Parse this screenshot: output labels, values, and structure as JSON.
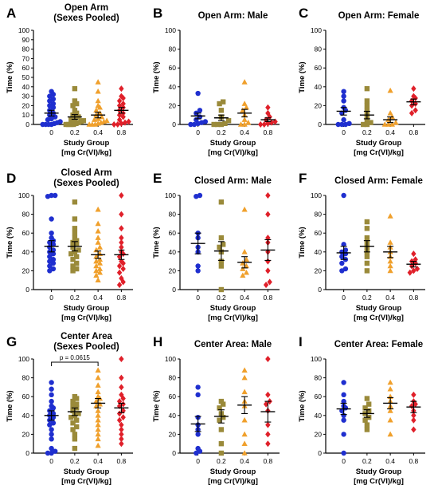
{
  "colors": {
    "0": "#1f2fcf",
    "0.2": "#9a8a3a",
    "0.4": "#f0a02c",
    "0.8": "#e0202a",
    "axis": "#000000"
  },
  "chart_data": [
    {
      "panel": "A",
      "title_lines": [
        "Open Arm",
        "(Sexes Pooled)"
      ],
      "type": "scatter",
      "categories": [
        "0",
        "0.2",
        "0.4",
        "0.8"
      ],
      "ylabel": "Time (%)",
      "xlabel_lines": [
        "Study Group",
        "[mg Cr(VI)/kg]"
      ],
      "ylim": [
        0,
        100
      ],
      "yticks": [
        0,
        10,
        20,
        30,
        40,
        50,
        60,
        70,
        80,
        90,
        100
      ],
      "annotation": null,
      "groups": [
        {
          "category": "0",
          "marker": "circle",
          "mean": 12,
          "sem": 3,
          "points": [
            35,
            32,
            30,
            27,
            25,
            22,
            20,
            18,
            15,
            12,
            10,
            8,
            5,
            3,
            1,
            0,
            0,
            0,
            0,
            2,
            6
          ]
        },
        {
          "category": "0.2",
          "marker": "square",
          "mean": 8,
          "sem": 2.5,
          "points": [
            38,
            25,
            22,
            20,
            15,
            12,
            10,
            8,
            6,
            4,
            2,
            0,
            0,
            0,
            0,
            1,
            3,
            5
          ]
        },
        {
          "category": "0.4",
          "marker": "triangle",
          "mean": 10,
          "sem": 3,
          "points": [
            45,
            35,
            25,
            20,
            18,
            15,
            12,
            10,
            8,
            5,
            3,
            1,
            0,
            0,
            0,
            2,
            4,
            6
          ]
        },
        {
          "category": "0.8",
          "marker": "diamond",
          "mean": 15,
          "sem": 3,
          "points": [
            38,
            30,
            28,
            25,
            22,
            20,
            18,
            15,
            12,
            10,
            8,
            5,
            3,
            1,
            0,
            0,
            2
          ]
        }
      ]
    },
    {
      "panel": "B",
      "title_lines": [
        "Open Arm: Male"
      ],
      "type": "scatter",
      "categories": [
        "0",
        "0.2",
        "0.4",
        "0.8"
      ],
      "ylabel": "Time (%)",
      "xlabel_lines": [
        "Study Group",
        "[mg Cr(VI)/kg]"
      ],
      "ylim": [
        0,
        100
      ],
      "yticks": [
        0,
        20,
        40,
        60,
        80,
        100
      ],
      "annotation": null,
      "groups": [
        {
          "category": "0",
          "marker": "circle",
          "mean": 9,
          "sem": 3,
          "points": [
            33,
            15,
            12,
            8,
            5,
            3,
            1,
            0,
            0,
            2
          ]
        },
        {
          "category": "0.2",
          "marker": "square",
          "mean": 7,
          "sem": 3,
          "points": [
            24,
            22,
            15,
            8,
            4,
            1,
            0,
            0,
            0
          ]
        },
        {
          "category": "0.4",
          "marker": "triangle",
          "mean": 12,
          "sem": 4,
          "points": [
            45,
            22,
            18,
            15,
            10,
            5,
            2,
            0,
            0
          ]
        },
        {
          "category": "0.8",
          "marker": "diamond",
          "mean": 5,
          "sem": 2,
          "points": [
            18,
            12,
            8,
            5,
            3,
            1,
            0,
            0,
            2
          ]
        }
      ]
    },
    {
      "panel": "C",
      "title_lines": [
        "Open Arm: Female"
      ],
      "type": "scatter",
      "categories": [
        "0",
        "0.2",
        "0.4",
        "0.8"
      ],
      "ylabel": "Time (%)",
      "xlabel_lines": [
        "Study Group",
        "[mg Cr(VI)/kg]"
      ],
      "ylim": [
        0,
        100
      ],
      "yticks": [
        0,
        20,
        40,
        60,
        80,
        100
      ],
      "annotation": null,
      "groups": [
        {
          "category": "0",
          "marker": "circle",
          "mean": 14,
          "sem": 4,
          "points": [
            35,
            30,
            25,
            18,
            15,
            12,
            5,
            1,
            0,
            0,
            0
          ]
        },
        {
          "category": "0.2",
          "marker": "square",
          "mean": 10,
          "sem": 4,
          "points": [
            38,
            25,
            20,
            15,
            10,
            5,
            2,
            0,
            0
          ]
        },
        {
          "category": "0.4",
          "marker": "triangle",
          "mean": 5,
          "sem": 3,
          "points": [
            36,
            12,
            8,
            5,
            2,
            0,
            0,
            0
          ]
        },
        {
          "category": "0.8",
          "marker": "diamond",
          "mean": 24,
          "sem": 3,
          "points": [
            38,
            30,
            28,
            25,
            22,
            20,
            15,
            12
          ]
        }
      ]
    },
    {
      "panel": "D",
      "title_lines": [
        "Closed Arm",
        "(Sexes Pooled)"
      ],
      "type": "scatter",
      "categories": [
        "0",
        "0.2",
        "0.4",
        "0.8"
      ],
      "ylabel": "Time (%)",
      "xlabel_lines": [
        "Study Group",
        "[mg Cr(VI)/kg]"
      ],
      "ylim": [
        0,
        100
      ],
      "yticks": [
        0,
        20,
        40,
        60,
        80,
        100
      ],
      "annotation": null,
      "groups": [
        {
          "category": "0",
          "marker": "circle",
          "mean": 46,
          "sem": 6,
          "points": [
            100,
            100,
            99,
            75,
            60,
            55,
            50,
            45,
            42,
            40,
            38,
            35,
            32,
            30,
            28,
            25,
            22,
            20,
            48,
            52
          ]
        },
        {
          "category": "0.2",
          "marker": "square",
          "mean": 46,
          "sem": 5,
          "points": [
            93,
            75,
            65,
            60,
            55,
            52,
            50,
            48,
            45,
            42,
            40,
            38,
            35,
            32,
            28,
            25,
            22,
            20
          ]
        },
        {
          "category": "0.4",
          "marker": "triangle",
          "mean": 37,
          "sem": 4,
          "points": [
            85,
            70,
            62,
            55,
            50,
            45,
            42,
            38,
            35,
            32,
            30,
            28,
            25,
            22,
            20,
            18,
            15,
            10
          ]
        },
        {
          "category": "0.8",
          "marker": "diamond",
          "mean": 37,
          "sem": 5,
          "points": [
            100,
            80,
            65,
            55,
            50,
            45,
            40,
            38,
            35,
            30,
            28,
            25,
            22,
            18,
            12,
            8,
            5
          ]
        }
      ]
    },
    {
      "panel": "E",
      "title_lines": [
        "Closed Arm: Male"
      ],
      "type": "scatter",
      "categories": [
        "0",
        "0.2",
        "0.4",
        "0.8"
      ],
      "ylabel": "Time (%)",
      "xlabel_lines": [
        "Study Group",
        "[mg Cr(VI)/kg]"
      ],
      "ylim": [
        0,
        100
      ],
      "yticks": [
        0,
        20,
        40,
        60,
        80,
        100
      ],
      "annotation": null,
      "groups": [
        {
          "category": "0",
          "marker": "circle",
          "mean": 49,
          "sem": 11,
          "points": [
            100,
            99,
            60,
            55,
            45,
            40,
            25,
            20
          ]
        },
        {
          "category": "0.2",
          "marker": "square",
          "mean": 41,
          "sem": 10,
          "points": [
            93,
            55,
            48,
            45,
            40,
            30,
            25,
            0
          ]
        },
        {
          "category": "0.4",
          "marker": "triangle",
          "mean": 29,
          "sem": 6,
          "points": [
            85,
            40,
            32,
            28,
            25,
            22,
            18,
            15
          ]
        },
        {
          "category": "0.8",
          "marker": "diamond",
          "mean": 42,
          "sem": 11,
          "points": [
            100,
            80,
            55,
            50,
            40,
            30,
            20,
            8,
            5
          ]
        }
      ]
    },
    {
      "panel": "F",
      "title_lines": [
        "Closed Arm: Female"
      ],
      "type": "scatter",
      "categories": [
        "0",
        "0.2",
        "0.4",
        "0.8"
      ],
      "ylabel": "Time (%)",
      "xlabel_lines": [
        "Study Group",
        "[mg Cr(VI)/kg]"
      ],
      "ylim": [
        0,
        100
      ],
      "yticks": [
        0,
        20,
        40,
        60,
        80,
        100
      ],
      "annotation": null,
      "groups": [
        {
          "category": "0",
          "marker": "circle",
          "mean": 39,
          "sem": 7,
          "points": [
            100,
            48,
            42,
            40,
            38,
            35,
            32,
            28,
            22,
            20
          ]
        },
        {
          "category": "0.2",
          "marker": "square",
          "mean": 46,
          "sem": 6,
          "points": [
            72,
            65,
            55,
            50,
            45,
            40,
            35,
            28,
            20
          ]
        },
        {
          "category": "0.4",
          "marker": "triangle",
          "mean": 40,
          "sem": 6,
          "points": [
            78,
            50,
            45,
            40,
            35,
            30,
            25,
            20
          ]
        },
        {
          "category": "0.8",
          "marker": "diamond",
          "mean": 27,
          "sem": 3,
          "points": [
            38,
            32,
            30,
            28,
            25,
            22,
            20,
            18
          ]
        }
      ]
    },
    {
      "panel": "G",
      "title_lines": [
        "Center Area",
        "(Sexes Pooled)"
      ],
      "type": "scatter",
      "categories": [
        "0",
        "0.2",
        "0.4",
        "0.8"
      ],
      "ylabel": "Time (%)",
      "xlabel_lines": [
        "Study Group",
        "[mg Cr(VI)/kg]"
      ],
      "ylim": [
        0,
        100
      ],
      "yticks": [
        0,
        20,
        40,
        60,
        80,
        100
      ],
      "annotation": {
        "text": "p = 0.0615",
        "from": "0",
        "to": "0.4"
      },
      "groups": [
        {
          "category": "0",
          "marker": "circle",
          "mean": 40,
          "sem": 5,
          "points": [
            75,
            68,
            62,
            55,
            50,
            48,
            45,
            42,
            40,
            38,
            35,
            32,
            30,
            25,
            20,
            15,
            5,
            2,
            0,
            0
          ]
        },
        {
          "category": "0.2",
          "marker": "square",
          "mean": 44,
          "sem": 4,
          "points": [
            60,
            58,
            55,
            52,
            50,
            48,
            45,
            42,
            40,
            38,
            35,
            32,
            28,
            25,
            20,
            15,
            5
          ]
        },
        {
          "category": "0.4",
          "marker": "triangle",
          "mean": 53,
          "sem": 5,
          "points": [
            88,
            80,
            72,
            65,
            60,
            58,
            55,
            52,
            50,
            45,
            40,
            35,
            30,
            25,
            20,
            15,
            8
          ]
        },
        {
          "category": "0.8",
          "marker": "diamond",
          "mean": 48,
          "sem": 5,
          "points": [
            100,
            80,
            70,
            62,
            58,
            55,
            52,
            50,
            45,
            42,
            38,
            35,
            30,
            25,
            20,
            15,
            10
          ]
        }
      ]
    },
    {
      "panel": "H",
      "title_lines": [
        "Center Area: Male"
      ],
      "type": "scatter",
      "categories": [
        "0",
        "0.2",
        "0.4",
        "0.8"
      ],
      "ylabel": "Time (%)",
      "xlabel_lines": [
        "Study Group",
        "[mg Cr(VI)/kg]"
      ],
      "ylim": [
        0,
        100
      ],
      "yticks": [
        0,
        20,
        40,
        60,
        80,
        100
      ],
      "annotation": null,
      "groups": [
        {
          "category": "0",
          "marker": "circle",
          "mean": 31,
          "sem": 8,
          "points": [
            70,
            62,
            38,
            30,
            25,
            20,
            5,
            2,
            0
          ]
        },
        {
          "category": "0.2",
          "marker": "square",
          "mean": 39,
          "sem": 7,
          "points": [
            55,
            52,
            48,
            42,
            38,
            35,
            25,
            10,
            0
          ]
        },
        {
          "category": "0.4",
          "marker": "triangle",
          "mean": 51,
          "sem": 9,
          "points": [
            88,
            80,
            65,
            55,
            50,
            35,
            20,
            10,
            0
          ]
        },
        {
          "category": "0.8",
          "marker": "diamond",
          "mean": 44,
          "sem": 11,
          "points": [
            100,
            62,
            55,
            52,
            45,
            30,
            20,
            10
          ]
        }
      ]
    },
    {
      "panel": "I",
      "title_lines": [
        "Center Area: Female"
      ],
      "type": "scatter",
      "categories": [
        "0",
        "0.2",
        "0.4",
        "0.8"
      ],
      "ylabel": "Time (%)",
      "xlabel_lines": [
        "Study Group",
        "[mg Cr(VI)/kg]"
      ],
      "ylim": [
        0,
        100
      ],
      "yticks": [
        0,
        20,
        40,
        60,
        80,
        100
      ],
      "annotation": null,
      "groups": [
        {
          "category": "0",
          "marker": "circle",
          "mean": 47,
          "sem": 6,
          "points": [
            75,
            62,
            55,
            50,
            48,
            45,
            40,
            35,
            20,
            0
          ]
        },
        {
          "category": "0.2",
          "marker": "square",
          "mean": 42,
          "sem": 4,
          "points": [
            58,
            52,
            48,
            45,
            42,
            38,
            35,
            30,
            25
          ]
        },
        {
          "category": "0.4",
          "marker": "triangle",
          "mean": 53,
          "sem": 6,
          "points": [
            75,
            68,
            60,
            55,
            50,
            45,
            35,
            20
          ]
        },
        {
          "category": "0.8",
          "marker": "diamond",
          "mean": 49,
          "sem": 6,
          "points": [
            62,
            55,
            52,
            50,
            45,
            40,
            35,
            25
          ]
        }
      ]
    }
  ]
}
